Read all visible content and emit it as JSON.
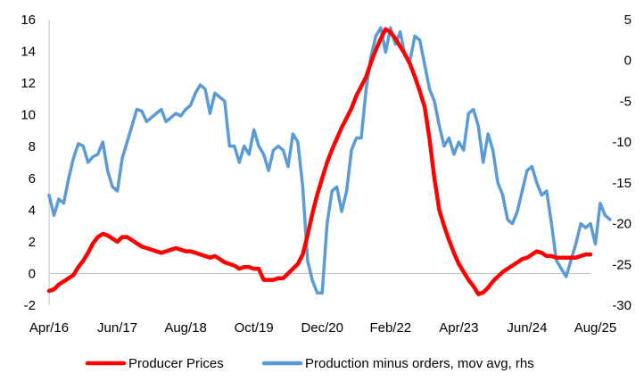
{
  "chart_data": {
    "type": "line",
    "title": "",
    "x_tick_labels": [
      "Apr/16",
      "Jun/17",
      "Aug/18",
      "Oct/19",
      "Dec/20",
      "Feb/22",
      "Apr/23",
      "Jun/24",
      "Aug/25"
    ],
    "y_left": {
      "ylim": [
        -2,
        16
      ],
      "ticks": [
        "-2",
        "0",
        "2",
        "4",
        "6",
        "8",
        "10",
        "12",
        "14",
        "16"
      ]
    },
    "y_right": {
      "ylim": [
        -30,
        5
      ],
      "ticks": [
        "-30",
        "-25",
        "-20",
        "-15",
        "-10",
        "-5",
        "0",
        "5"
      ]
    },
    "grid": false,
    "legend_position": "bottom",
    "series": [
      {
        "name": "Producer Prices",
        "axis": "left",
        "color": "#ff0000",
        "x_start_month": 0,
        "values": [
          -1.1,
          -1.0,
          -0.7,
          -0.5,
          -0.3,
          -0.1,
          0.4,
          0.8,
          1.3,
          1.9,
          2.3,
          2.5,
          2.4,
          2.2,
          2.0,
          2.3,
          2.3,
          2.1,
          1.9,
          1.7,
          1.6,
          1.5,
          1.4,
          1.3,
          1.4,
          1.5,
          1.6,
          1.5,
          1.4,
          1.4,
          1.3,
          1.2,
          1.1,
          1.0,
          1.1,
          0.9,
          0.7,
          0.6,
          0.5,
          0.3,
          0.4,
          0.4,
          0.3,
          0.3,
          -0.4,
          -0.4,
          -0.4,
          -0.3,
          -0.3,
          0.0,
          0.3,
          0.6,
          1.2,
          2.4,
          3.8,
          5.0,
          6.0,
          7.0,
          7.8,
          8.5,
          9.2,
          9.8,
          10.4,
          11.2,
          11.8,
          12.4,
          13.3,
          14.1,
          14.8,
          15.4,
          15.2,
          14.8,
          14.3,
          13.8,
          13.2,
          12.4,
          11.5,
          10.5,
          8.5,
          6.0,
          4.0,
          3.0,
          2.1,
          1.3,
          0.6,
          0.1,
          -0.4,
          -0.8,
          -1.3,
          -1.2,
          -0.9,
          -0.5,
          -0.2,
          0.1,
          0.3,
          0.5,
          0.7,
          0.9,
          1.0,
          1.2,
          1.4,
          1.3,
          1.1,
          1.1,
          1.0,
          1.0,
          1.0,
          1.0,
          1.0,
          1.1,
          1.2,
          1.2
        ]
      },
      {
        "name": "Production minus orders, mov avg, rhs",
        "axis": "right",
        "color": "#5b9bd5",
        "x_start_month": 0,
        "values": [
          -16.5,
          -19.0,
          -17.0,
          -17.5,
          -14.5,
          -12.0,
          -10.2,
          -10.5,
          -12.5,
          -11.8,
          -11.5,
          -10.0,
          -13.5,
          -15.5,
          -16.0,
          -12.0,
          -10.0,
          -8.0,
          -6.0,
          -6.2,
          -7.5,
          -7.0,
          -6.5,
          -6.0,
          -7.5,
          -7.0,
          -6.5,
          -6.8,
          -6.0,
          -5.5,
          -4.0,
          -3.0,
          -3.5,
          -6.5,
          -4.0,
          -4.5,
          -5.0,
          -10.5,
          -10.5,
          -12.5,
          -10.5,
          -11.5,
          -8.5,
          -10.5,
          -11.5,
          -13.5,
          -11.0,
          -10.5,
          -11.0,
          -13.0,
          -9.0,
          -10.0,
          -15.5,
          -24.5,
          -27.0,
          -28.5,
          -28.5,
          -20.0,
          -16.0,
          -15.5,
          -18.5,
          -16.0,
          -11.0,
          -9.5,
          -9.5,
          -3.5,
          0.5,
          3.0,
          4.0,
          1.0,
          4.0,
          2.0,
          3.5,
          0.5,
          0.0,
          3.0,
          2.5,
          -0.5,
          -3.5,
          -5.0,
          -8.0,
          -10.5,
          -9.5,
          -11.5,
          -10.0,
          -11.0,
          -6.5,
          -6.0,
          -8.0,
          -12.5,
          -9.0,
          -11.0,
          -15.0,
          -16.5,
          -19.5,
          -20.0,
          -18.5,
          -16.0,
          -13.5,
          -13.0,
          -15.0,
          -16.5,
          -16.0,
          -20.0,
          -24.5,
          -25.5,
          -26.5,
          -24.5,
          -22.5,
          -20.0,
          -20.5,
          -20.0,
          -22.5,
          -17.5,
          -19.0,
          -19.5
        ]
      }
    ]
  }
}
